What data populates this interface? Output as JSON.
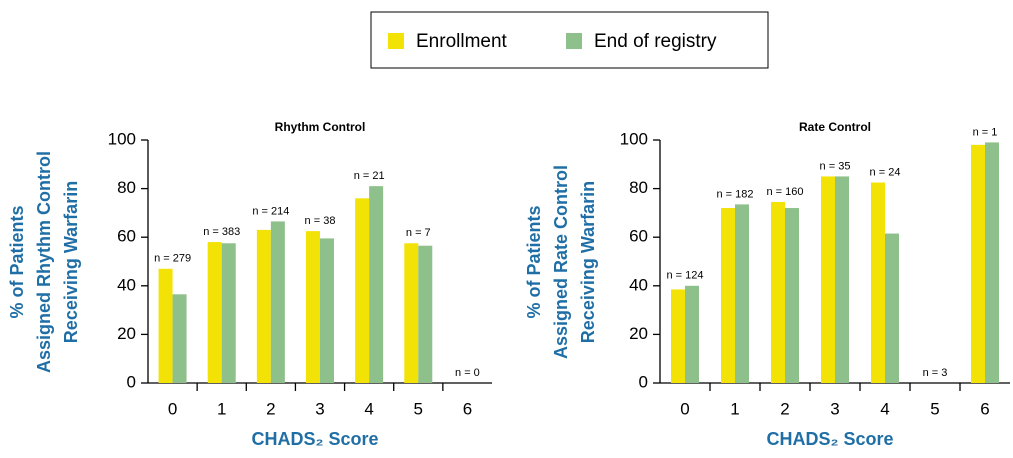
{
  "chart_data": [
    {
      "type": "bar",
      "title": "Rhythm Control",
      "categories": [
        "0",
        "1",
        "2",
        "3",
        "4",
        "5",
        "6"
      ],
      "series": [
        {
          "name": "Enrollment",
          "color": "#f2e205",
          "values": [
            47,
            58,
            63,
            62.5,
            76,
            57.5,
            null
          ]
        },
        {
          "name": "End of registry",
          "color": "#8dc08a",
          "values": [
            36.5,
            57.5,
            66.5,
            59.5,
            81,
            56.5,
            null
          ]
        }
      ],
      "annotations": [
        "n = 279",
        "n = 383",
        "n = 214",
        "n = 38",
        "n = 21",
        "n = 7",
        "n = 0"
      ],
      "x_label": "CHADS₂ Score",
      "y_label": [
        "% of Patients",
        "Assigned Rhythm Control",
        "Receiving Warfarin"
      ],
      "ylim": [
        0,
        100
      ],
      "yticks": [
        0,
        20,
        40,
        60,
        80,
        100
      ]
    },
    {
      "type": "bar",
      "title": "Rate Control",
      "categories": [
        "0",
        "1",
        "2",
        "3",
        "4",
        "5",
        "6"
      ],
      "series": [
        {
          "color": "#f2e205",
          "values": [
            38.5,
            72,
            74.5,
            85,
            82.5,
            null,
            98
          ]
        },
        {
          "color": "#8dc08a",
          "values": [
            40,
            73.5,
            72,
            85,
            61.5,
            null,
            99
          ]
        }
      ],
      "annotations": [
        "n = 124",
        "n = 182",
        "n = 160",
        "n = 35",
        "n = 24",
        "n = 3",
        "n = 1"
      ],
      "x_label": "CHADS₂ Score",
      "y_label": [
        "% of Patients",
        "Assigned Rate Control",
        "Receiving Warfarin"
      ],
      "ylim": [
        0,
        100
      ],
      "yticks": [
        0,
        20,
        40,
        60,
        80,
        100
      ]
    }
  ]
}
